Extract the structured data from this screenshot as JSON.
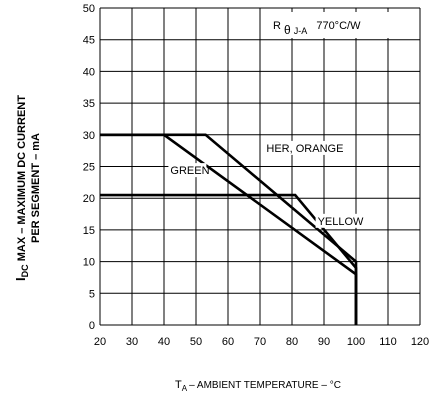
{
  "chart_data": {
    "type": "line",
    "xlabel_prefix": "T",
    "xlabel_sub": "A",
    "xlabel_rest": "– AMBIENT TEMPERATURE – °C",
    "ylabel_line1_prefix": "I",
    "ylabel_line1_sub": "DC",
    "ylabel_line1_rest": " MAX – MAXIMUM DC CURRENT",
    "ylabel_line2": "PER SEGMENT – mA",
    "xlim": [
      20,
      120
    ],
    "ylim": [
      0,
      50
    ],
    "xticks": [
      20,
      30,
      40,
      50,
      60,
      70,
      80,
      90,
      100,
      110,
      120
    ],
    "yticks": [
      0,
      5,
      10,
      15,
      20,
      25,
      30,
      35,
      40,
      45,
      50
    ],
    "grid": true,
    "annotation": {
      "prefix": "R",
      "theta": "θ",
      "sub": "J-A",
      "value": "770°C/W"
    },
    "series": [
      {
        "name": "HER, ORANGE",
        "x": [
          20,
          53,
          100,
          100
        ],
        "y": [
          30,
          30,
          10,
          0
        ]
      },
      {
        "name": "GREEN",
        "x": [
          20,
          40,
          100,
          100
        ],
        "y": [
          30,
          30,
          8,
          0
        ]
      },
      {
        "name": "YELLOW",
        "x": [
          20,
          81,
          100,
          100
        ],
        "y": [
          20.5,
          20.5,
          9,
          0
        ]
      }
    ]
  }
}
